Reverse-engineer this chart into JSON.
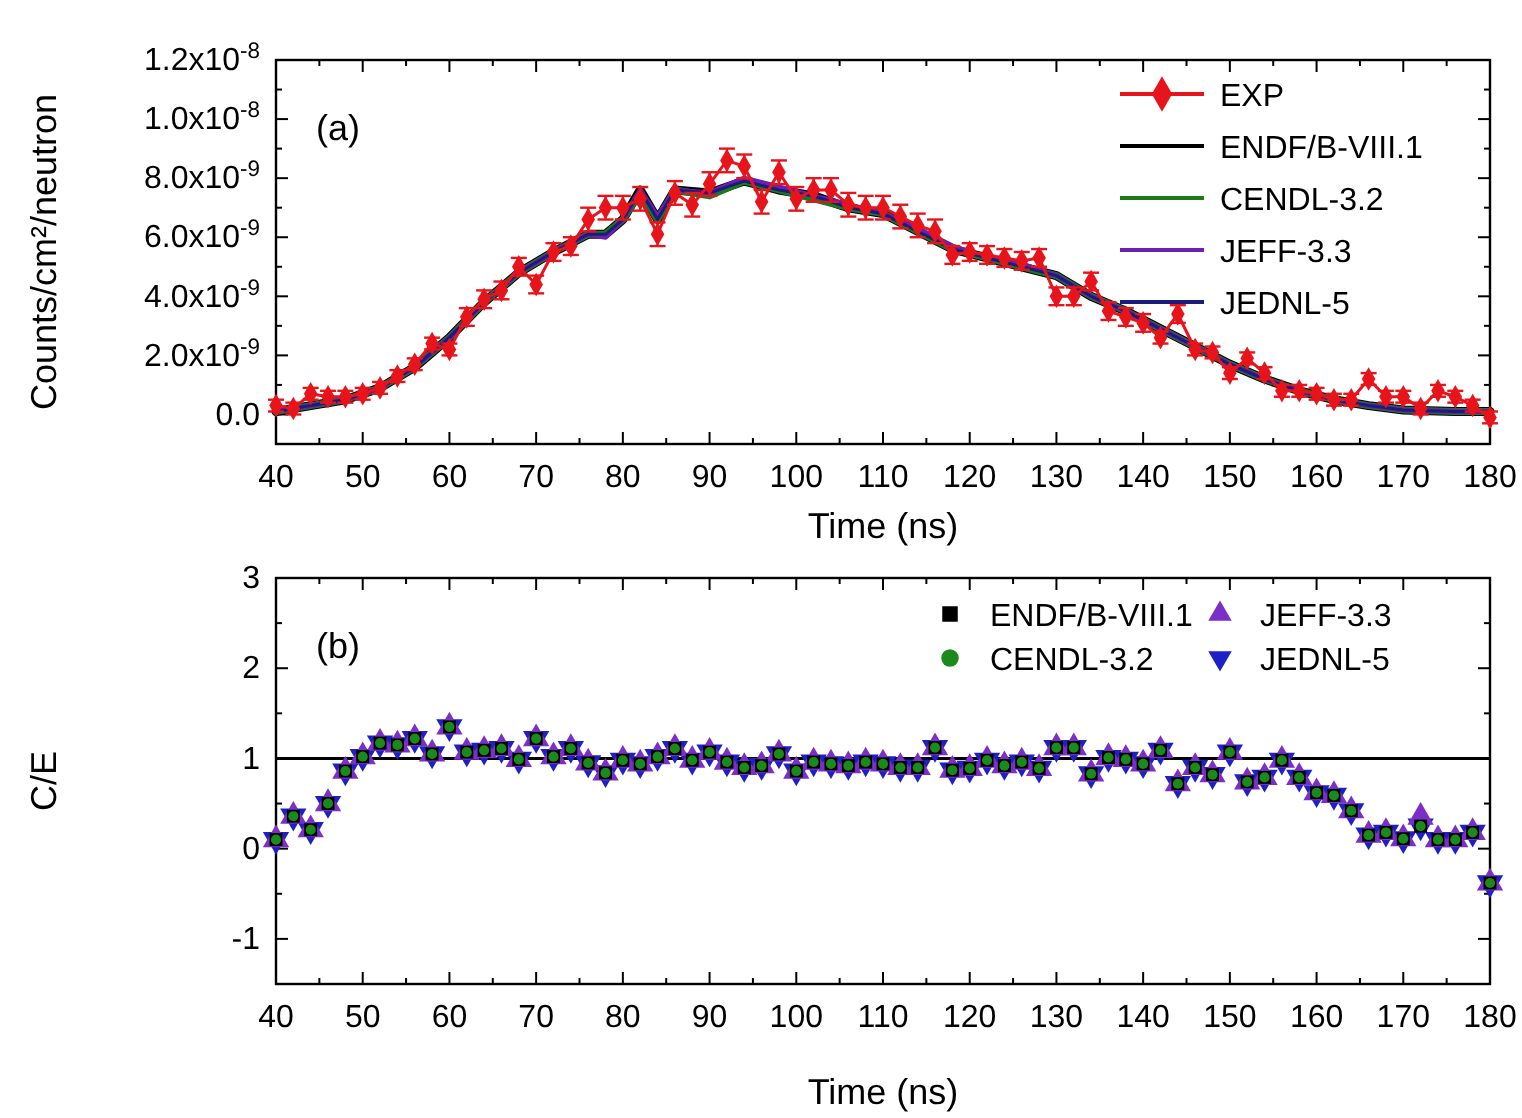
{
  "chart_data": [
    {
      "type": "line",
      "xlabel": "Time (ns)",
      "ylabel": "Counts/cm²/neutron",
      "annotations": [
        "(a)"
      ],
      "legend": "top right",
      "line_style": "solid",
      "marker": "diamond",
      "grid": false,
      "xlim": [
        40,
        180
      ],
      "xticks": [
        40,
        {
          "value": 45,
          "label": null
        },
        50,
        {
          "value": 55,
          "label": null
        },
        60,
        {
          "value": 65,
          "label": null
        },
        70,
        {
          "value": 75,
          "label": null
        },
        80,
        {
          "value": 85,
          "label": null
        },
        90,
        {
          "value": 95,
          "label": null
        },
        100,
        {
          "value": 105,
          "label": null
        },
        110,
        {
          "value": 115,
          "label": null
        },
        120,
        {
          "value": 125,
          "label": null
        },
        130,
        {
          "value": 135,
          "label": null
        },
        140,
        {
          "value": 145,
          "label": null
        },
        150,
        {
          "value": 155,
          "label": null
        },
        160,
        {
          "value": 165,
          "label": null
        },
        170,
        {
          "value": 175,
          "label": null
        },
        180
      ],
      "ylim": [
        -1e-09,
        1.2e-08
      ],
      "yticks": [
        {
          "value": 0,
          "label": "0.0"
        },
        {
          "value": 1e-09,
          "label": null
        },
        {
          "value": 2e-09,
          "label": "2.0x10$^{-9}$"
        },
        {
          "value": 3e-09,
          "label": null
        },
        {
          "value": 4e-09,
          "label": "4.0x10$^{-9}$"
        },
        {
          "value": 5e-09,
          "label": null
        },
        {
          "value": 6e-09,
          "label": "6.0x10$^{-9}$"
        },
        {
          "value": 7e-09,
          "label": null
        },
        {
          "value": 8e-09,
          "label": "8.0x10$^{-9}$"
        },
        {
          "value": 9e-09,
          "label": null
        },
        {
          "value": 1e-08,
          "label": "1.0x10$^{-8}$"
        },
        {
          "value": 1.1e-08,
          "label": null
        },
        {
          "value": 1.2e-08,
          "label": "1.2x10$^{-8}$"
        }
      ],
      "x": [
        40,
        42,
        44,
        46,
        48,
        50,
        52,
        54,
        56,
        58,
        60,
        62,
        64,
        66,
        68,
        70,
        72,
        74,
        76,
        78,
        80,
        82,
        84,
        86,
        88,
        90,
        92,
        94,
        96,
        98,
        100,
        102,
        104,
        106,
        108,
        110,
        112,
        114,
        116,
        118,
        120,
        122,
        124,
        126,
        128,
        130,
        132,
        134,
        136,
        138,
        140,
        142,
        144,
        146,
        148,
        150,
        152,
        154,
        156,
        158,
        160,
        162,
        164,
        166,
        168,
        170,
        172,
        174,
        176,
        178,
        180
      ],
      "series": [
        {
          "name": "EXP",
          "color": "#e8141b",
          "values": [
            3e-10,
            2e-10,
            7e-10,
            6e-10,
            6e-10,
            7e-10,
            9e-10,
            1.3e-09,
            1.7e-09,
            2.4e-09,
            2.2e-09,
            3.3e-09,
            3.9e-09,
            4.2e-09,
            5e-09,
            4.4e-09,
            5.5e-09,
            5.7e-09,
            6.6e-09,
            7e-09,
            7e-09,
            7.3e-09,
            6.1e-09,
            7.5e-09,
            7.1e-09,
            7.8e-09,
            8.6e-09,
            8.4e-09,
            7.2e-09,
            8.2e-09,
            7.3e-09,
            7.6e-09,
            7.6e-09,
            7.1e-09,
            7e-09,
            7e-09,
            6.7e-09,
            6.4e-09,
            6.2e-09,
            5.4e-09,
            5.5e-09,
            5.4e-09,
            5.3e-09,
            5.2e-09,
            5.3e-09,
            4e-09,
            4e-09,
            4.5e-09,
            3.5e-09,
            3.3e-09,
            3.1e-09,
            2.6e-09,
            3.4e-09,
            2.2e-09,
            2.1e-09,
            1.4e-09,
            1.9e-09,
            1.4e-09,
            8e-10,
            8e-10,
            7e-10,
            5e-10,
            5e-10,
            1.2e-09,
            6e-10,
            6e-10,
            2e-10,
            8e-10,
            6e-10,
            3e-10,
            -1e-10
          ],
          "errors": [
            2e-10,
            2e-10,
            2e-10,
            2e-10,
            2e-10,
            2e-10,
            2e-10,
            2e-10,
            2e-10,
            2e-10,
            2e-10,
            3e-10,
            3e-10,
            3e-10,
            3e-10,
            3e-10,
            3e-10,
            3e-10,
            4e-10,
            4e-10,
            4e-10,
            4e-10,
            4e-10,
            4e-10,
            4e-10,
            4e-10,
            4e-10,
            4e-10,
            4e-10,
            4e-10,
            4e-10,
            4e-10,
            4e-10,
            4e-10,
            4e-10,
            4e-10,
            4e-10,
            4e-10,
            4e-10,
            3e-10,
            3e-10,
            3e-10,
            3e-10,
            3e-10,
            3e-10,
            3e-10,
            3e-10,
            3e-10,
            3e-10,
            3e-10,
            3e-10,
            2e-10,
            3e-10,
            2e-10,
            2e-10,
            2e-10,
            2e-10,
            2e-10,
            2e-10,
            2e-10,
            2e-10,
            2e-10,
            2e-10,
            2e-10,
            2e-10,
            2e-10,
            2e-10,
            2e-10,
            2e-10,
            2e-10,
            2e-10
          ]
        },
        {
          "name": "ENDF/B-VIII.1",
          "color": "#000000",
          "marker": "none",
          "x": [
            40,
            44,
            48,
            52,
            56,
            60,
            64,
            68,
            72,
            76,
            78,
            80,
            82,
            84,
            86,
            90,
            94,
            98,
            102,
            106,
            110,
            114,
            118,
            122,
            126,
            130,
            134,
            138,
            142,
            146,
            150,
            154,
            158,
            162,
            166,
            170,
            176,
            180
          ],
          "values": [
            1e-10,
            3e-10,
            5e-10,
            9e-10,
            1.6e-09,
            2.6e-09,
            3.8e-09,
            4.8e-09,
            5.5e-09,
            6.1e-09,
            6.1e-09,
            6.6e-09,
            7.6e-09,
            6.6e-09,
            7.6e-09,
            7.5e-09,
            7.9e-09,
            7.6e-09,
            7.4e-09,
            7e-09,
            6.8e-09,
            6.2e-09,
            5.6e-09,
            5.3e-09,
            5e-09,
            4.7e-09,
            4e-09,
            3.5e-09,
            2.9e-09,
            2.3e-09,
            1.7e-09,
            1.2e-09,
            8e-10,
            5e-10,
            3e-10,
            1.5e-10,
            1e-10,
            1e-10
          ]
        },
        {
          "name": "CENDL-3.2",
          "color": "#1a7a1a",
          "marker": "none",
          "x": [
            40,
            44,
            48,
            52,
            56,
            60,
            64,
            68,
            72,
            76,
            78,
            80,
            82,
            84,
            86,
            90,
            94,
            98,
            102,
            106,
            110,
            114,
            118,
            122,
            126,
            130,
            134,
            138,
            142,
            146,
            150,
            154,
            158,
            162,
            166,
            170,
            176,
            180
          ],
          "values": [
            1e-10,
            3e-10,
            5e-10,
            9e-10,
            1.6e-09,
            2.6e-09,
            3.8e-09,
            4.8e-09,
            5.5e-09,
            6.1e-09,
            6.1e-09,
            6.6e-09,
            7.5e-09,
            6.6e-09,
            7.6e-09,
            7.4e-09,
            7.9e-09,
            7.6e-09,
            7.3e-09,
            7e-09,
            6.8e-09,
            6.2e-09,
            5.6e-09,
            5.3e-09,
            5e-09,
            4.7e-09,
            4e-09,
            3.5e-09,
            2.9e-09,
            2.3e-09,
            1.7e-09,
            1.2e-09,
            8e-10,
            5e-10,
            3e-10,
            1.5e-10,
            1e-10,
            1e-10
          ]
        },
        {
          "name": "JEFF-3.3",
          "color": "#6a1fb0",
          "marker": "none",
          "x": [
            40,
            44,
            48,
            52,
            56,
            60,
            64,
            68,
            72,
            76,
            78,
            80,
            82,
            84,
            86,
            90,
            94,
            98,
            102,
            106,
            110,
            114,
            118,
            122,
            126,
            130,
            134,
            138,
            142,
            146,
            150,
            154,
            158,
            162,
            166,
            170,
            176,
            180
          ],
          "values": [
            1e-10,
            3e-10,
            5e-10,
            9e-10,
            1.6e-09,
            2.6e-09,
            3.8e-09,
            4.8e-09,
            5.5e-09,
            6.1e-09,
            6e-09,
            6.6e-09,
            7.6e-09,
            6.7e-09,
            7.6e-09,
            7.5e-09,
            8e-09,
            7.7e-09,
            7.4e-09,
            7.1e-09,
            6.8e-09,
            6.3e-09,
            5.7e-09,
            5.3e-09,
            5.1e-09,
            4.7e-09,
            4e-09,
            3.5e-09,
            2.9e-09,
            2.3e-09,
            1.7e-09,
            1.2e-09,
            8e-10,
            5e-10,
            3e-10,
            1.5e-10,
            1e-10,
            1e-10
          ]
        },
        {
          "name": "JEDNL-5",
          "color": "#1b1b7a",
          "marker": "none",
          "x": [
            40,
            44,
            48,
            52,
            56,
            60,
            64,
            68,
            72,
            76,
            78,
            80,
            82,
            84,
            86,
            90,
            94,
            98,
            102,
            106,
            110,
            114,
            118,
            122,
            126,
            130,
            134,
            138,
            142,
            146,
            150,
            154,
            158,
            162,
            166,
            170,
            176,
            180
          ],
          "values": [
            1e-10,
            3e-10,
            5e-10,
            9e-10,
            1.6e-09,
            2.6e-09,
            3.8e-09,
            4.8e-09,
            5.5e-09,
            6.1e-09,
            6.1e-09,
            6.6e-09,
            7.6e-09,
            6.6e-09,
            7.6e-09,
            7.5e-09,
            7.9e-09,
            7.6e-09,
            7.4e-09,
            7e-09,
            6.8e-09,
            6.2e-09,
            5.6e-09,
            5.3e-09,
            5e-09,
            4.7e-09,
            4e-09,
            3.5e-09,
            2.9e-09,
            2.3e-09,
            1.7e-09,
            1.2e-09,
            8e-10,
            5e-10,
            3e-10,
            1.5e-10,
            1e-10,
            1e-10
          ]
        }
      ]
    },
    {
      "type": "scatter",
      "xlabel": "Time (ns)",
      "ylabel": "C/E",
      "annotations": [
        "(b)"
      ],
      "legend": "top right",
      "grid": false,
      "xlim": [
        40,
        180
      ],
      "xticks": [
        40,
        {
          "value": 45,
          "label": null
        },
        50,
        {
          "value": 55,
          "label": null
        },
        60,
        {
          "value": 65,
          "label": null
        },
        70,
        {
          "value": 75,
          "label": null
        },
        80,
        {
          "value": 85,
          "label": null
        },
        90,
        {
          "value": 95,
          "label": null
        },
        100,
        {
          "value": 105,
          "label": null
        },
        110,
        {
          "value": 115,
          "label": null
        },
        120,
        {
          "value": 125,
          "label": null
        },
        130,
        {
          "value": 135,
          "label": null
        },
        140,
        {
          "value": 145,
          "label": null
        },
        150,
        {
          "value": 155,
          "label": null
        },
        160,
        {
          "value": 165,
          "label": null
        },
        170,
        {
          "value": 175,
          "label": null
        },
        180
      ],
      "ylim": [
        -1.5,
        3
      ],
      "yticks": [
        {
          "value": -1.5,
          "label": null
        },
        -1,
        {
          "value": -0.5,
          "label": null
        },
        0,
        {
          "value": 0.5,
          "label": null
        },
        1,
        {
          "value": 1.5,
          "label": null
        },
        2,
        {
          "value": 2.5,
          "label": null
        },
        3
      ],
      "ref_lines": [
        {
          "axis": "y",
          "value": 1,
          "color": "#000000"
        }
      ],
      "x": [
        40,
        42,
        44,
        46,
        48,
        50,
        52,
        54,
        56,
        58,
        60,
        62,
        64,
        66,
        68,
        70,
        72,
        74,
        76,
        78,
        80,
        82,
        84,
        86,
        88,
        90,
        92,
        94,
        96,
        98,
        100,
        102,
        104,
        106,
        108,
        110,
        112,
        114,
        116,
        118,
        120,
        122,
        124,
        126,
        128,
        130,
        132,
        134,
        136,
        138,
        140,
        142,
        144,
        146,
        148,
        150,
        152,
        154,
        156,
        158,
        160,
        162,
        164,
        166,
        168,
        170,
        172,
        174,
        176,
        178,
        180
      ],
      "series": [
        {
          "name": "ENDF/B-VIII.1",
          "color": "#000000",
          "marker": "square",
          "values": [
            0.1,
            0.36,
            0.21,
            0.5,
            0.86,
            1.02,
            1.17,
            1.15,
            1.22,
            1.05,
            1.35,
            1.07,
            1.09,
            1.11,
            0.99,
            1.22,
            1.02,
            1.11,
            0.95,
            0.84,
            0.98,
            0.94,
            1.02,
            1.11,
            0.98,
            1.07,
            0.96,
            0.9,
            0.92,
            1.05,
            0.86,
            0.96,
            0.94,
            0.92,
            0.96,
            0.94,
            0.9,
            0.9,
            1.12,
            0.87,
            0.89,
            0.98,
            0.92,
            0.96,
            0.89,
            1.12,
            1.12,
            0.83,
            1.01,
            0.99,
            0.94,
            1.09,
            0.72,
            0.9,
            0.82,
            1.07,
            0.74,
            0.79,
            0.98,
            0.79,
            0.62,
            0.59,
            0.42,
            0.15,
            0.18,
            0.11,
            0.25,
            0.1,
            0.1,
            0.18,
            -0.38
          ]
        },
        {
          "name": "CENDL-3.2",
          "color": "#1a8a1a",
          "marker": "circle",
          "values": [
            0.1,
            0.36,
            0.21,
            0.5,
            0.86,
            1.02,
            1.17,
            1.15,
            1.22,
            1.05,
            1.35,
            1.07,
            1.09,
            1.11,
            0.99,
            1.22,
            1.02,
            1.11,
            0.95,
            0.84,
            0.98,
            0.94,
            1.02,
            1.11,
            0.98,
            1.07,
            0.96,
            0.9,
            0.92,
            1.05,
            0.86,
            0.96,
            0.94,
            0.92,
            0.96,
            0.94,
            0.9,
            0.9,
            1.12,
            0.87,
            0.89,
            0.98,
            0.92,
            0.96,
            0.89,
            1.12,
            1.12,
            0.83,
            1.01,
            0.99,
            0.94,
            1.09,
            0.72,
            0.9,
            0.82,
            1.07,
            0.74,
            0.79,
            0.98,
            0.79,
            0.62,
            0.59,
            0.42,
            0.15,
            0.18,
            0.11,
            0.25,
            0.1,
            0.1,
            0.18,
            -0.38
          ]
        },
        {
          "name": "JEFF-3.3",
          "color": "#7b2fc8",
          "marker": "triangle",
          "values": [
            0.1,
            0.36,
            0.21,
            0.5,
            0.86,
            1.02,
            1.17,
            1.15,
            1.22,
            1.05,
            1.35,
            1.07,
            1.09,
            1.11,
            0.99,
            1.22,
            1.02,
            1.11,
            0.95,
            0.84,
            0.98,
            0.94,
            1.02,
            1.11,
            0.98,
            1.07,
            0.96,
            0.9,
            0.92,
            1.05,
            0.86,
            0.96,
            0.94,
            0.92,
            0.96,
            0.94,
            0.9,
            0.9,
            1.12,
            0.87,
            0.89,
            0.98,
            0.92,
            0.96,
            0.89,
            1.12,
            1.12,
            0.83,
            1.01,
            0.99,
            0.94,
            1.09,
            0.72,
            0.9,
            0.82,
            1.07,
            0.74,
            0.79,
            0.98,
            0.79,
            0.62,
            0.59,
            0.42,
            0.15,
            0.18,
            0.11,
            0.35,
            0.1,
            0.1,
            0.18,
            -0.38
          ]
        },
        {
          "name": "JEDNL-5",
          "color": "#1f1fc8",
          "marker": "triangle-down",
          "values": [
            0.1,
            0.36,
            0.21,
            0.5,
            0.86,
            1.02,
            1.17,
            1.15,
            1.22,
            1.05,
            1.35,
            1.07,
            1.09,
            1.11,
            0.99,
            1.22,
            1.02,
            1.11,
            0.95,
            0.84,
            0.98,
            0.94,
            1.02,
            1.11,
            0.98,
            1.07,
            0.96,
            0.9,
            0.92,
            1.05,
            0.86,
            0.96,
            0.94,
            0.92,
            0.96,
            0.94,
            0.9,
            0.9,
            1.12,
            0.87,
            0.89,
            0.98,
            0.92,
            0.96,
            0.89,
            1.12,
            1.12,
            0.83,
            1.01,
            0.99,
            0.94,
            1.09,
            0.72,
            0.9,
            0.82,
            1.07,
            0.74,
            0.79,
            0.98,
            0.79,
            0.62,
            0.59,
            0.42,
            0.15,
            0.18,
            0.11,
            0.25,
            0.1,
            0.1,
            0.18,
            -0.38
          ]
        }
      ]
    }
  ]
}
